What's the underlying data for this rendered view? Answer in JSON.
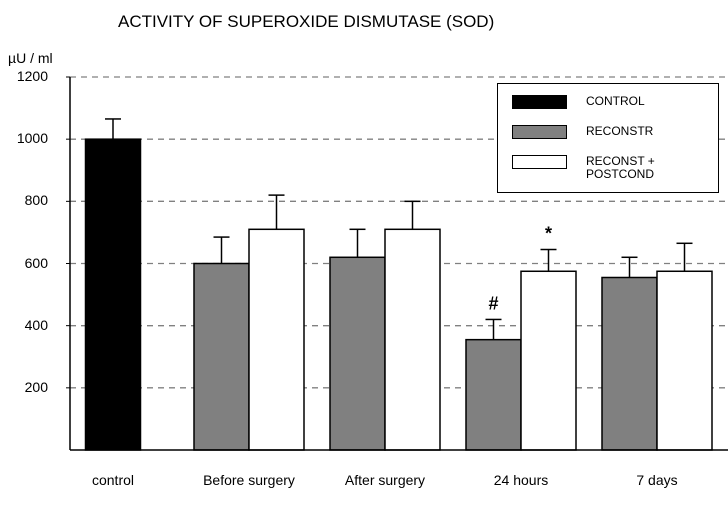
{
  "chart_data": {
    "type": "bar",
    "title": "ACTIVITY OF SUPEROXIDE DISMUTASE (SOD)",
    "y_label": "µU / ml",
    "categories": [
      "control",
      "Before surgery",
      "After surgery",
      "24 hours",
      "7 days"
    ],
    "series": [
      {
        "name": "CONTROL",
        "color": "#000000",
        "values": [
          1000,
          null,
          null,
          null,
          null
        ],
        "errors": [
          65,
          null,
          null,
          null,
          null
        ]
      },
      {
        "name": "RECONSTR",
        "color": "#808080",
        "values": [
          null,
          600,
          620,
          355,
          555
        ],
        "errors": [
          null,
          85,
          90,
          65,
          65
        ]
      },
      {
        "name": "RECONST + POSTCOND",
        "color": "#ffffff",
        "values": [
          null,
          710,
          710,
          575,
          575
        ],
        "errors": [
          null,
          110,
          90,
          70,
          90
        ]
      }
    ],
    "annotations": [
      {
        "text": "#",
        "series": 1,
        "category": 3
      },
      {
        "text": "*",
        "series": 2,
        "category": 3
      }
    ],
    "ylim": [
      0,
      1200
    ],
    "yticks": [
      200,
      400,
      600,
      800,
      1000,
      1200
    ],
    "grid": true,
    "legend": "upper right"
  }
}
